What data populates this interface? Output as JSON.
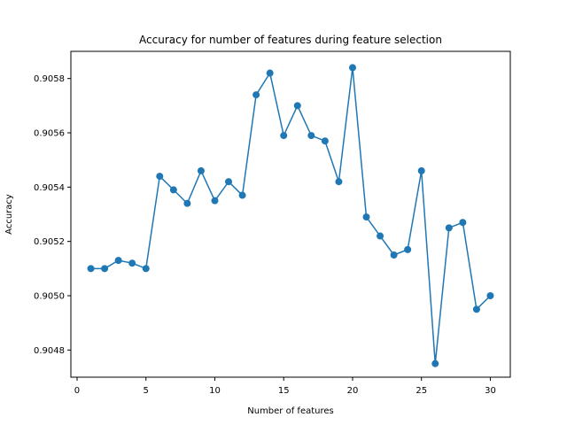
{
  "chart_data": {
    "type": "line",
    "title": "Accuracy for number of features during feature selection",
    "xlabel": "Number of features",
    "ylabel": "Accuracy",
    "xlim": [
      -0.45,
      31.45
    ],
    "ylim": [
      0.9047,
      0.9059
    ],
    "x_ticks": [
      0,
      5,
      10,
      15,
      20,
      25,
      30
    ],
    "x_tick_labels": [
      "0",
      "5",
      "10",
      "15",
      "20",
      "25",
      "30"
    ],
    "y_ticks": [
      0.9048,
      0.905,
      0.9052,
      0.9054,
      0.9056,
      0.9058
    ],
    "y_tick_labels": [
      "0.9048",
      "0.9050",
      "0.9052",
      "0.9054",
      "0.9056",
      "0.9058"
    ],
    "grid": false,
    "series": [
      {
        "color": "#1f77b4",
        "marker": "circle",
        "x": [
          1,
          2,
          3,
          4,
          5,
          6,
          7,
          8,
          9,
          10,
          11,
          12,
          13,
          14,
          15,
          16,
          17,
          18,
          19,
          20,
          21,
          22,
          23,
          24,
          25,
          26,
          27,
          28,
          29,
          30
        ],
        "values": [
          0.9051,
          0.9051,
          0.90513,
          0.90512,
          0.9051,
          0.90544,
          0.90539,
          0.90534,
          0.90546,
          0.90535,
          0.90542,
          0.90537,
          0.90574,
          0.90582,
          0.90559,
          0.9057,
          0.90559,
          0.90557,
          0.90542,
          0.90584,
          0.90529,
          0.90522,
          0.90515,
          0.90517,
          0.90546,
          0.90475,
          0.90525,
          0.90527,
          0.90495,
          0.905
        ]
      }
    ]
  }
}
